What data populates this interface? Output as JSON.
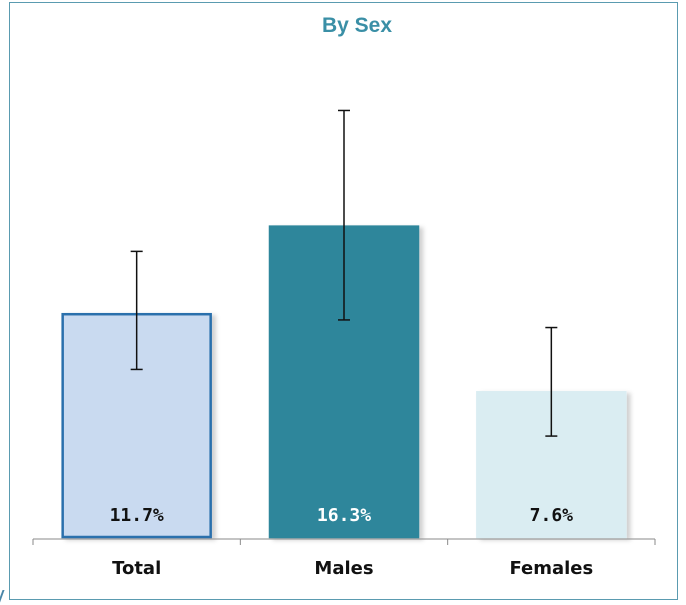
{
  "chart_data": {
    "type": "bar",
    "title": "By Sex",
    "categories": [
      "Total",
      "Males",
      "Females"
    ],
    "values": [
      11.7,
      16.3,
      7.6
    ],
    "value_labels": [
      "11.7%",
      "16.3%",
      "7.6%"
    ],
    "error_low": [
      8.8,
      11.4,
      5.3
    ],
    "error_high": [
      15.0,
      22.4,
      11.0
    ],
    "ylim": [
      0,
      24
    ],
    "grid": false,
    "legend": "none",
    "colors": {
      "bars": [
        "#c9daf0",
        "#2e869b",
        "#daedf2"
      ],
      "bar_borders": [
        "#2c6fac",
        "#2e869b",
        "#daedf2"
      ],
      "value_text": [
        "#111111",
        "#ffffff",
        "#111111"
      ],
      "title": "#3a8fa6",
      "frame": "#5a9bb0"
    }
  }
}
